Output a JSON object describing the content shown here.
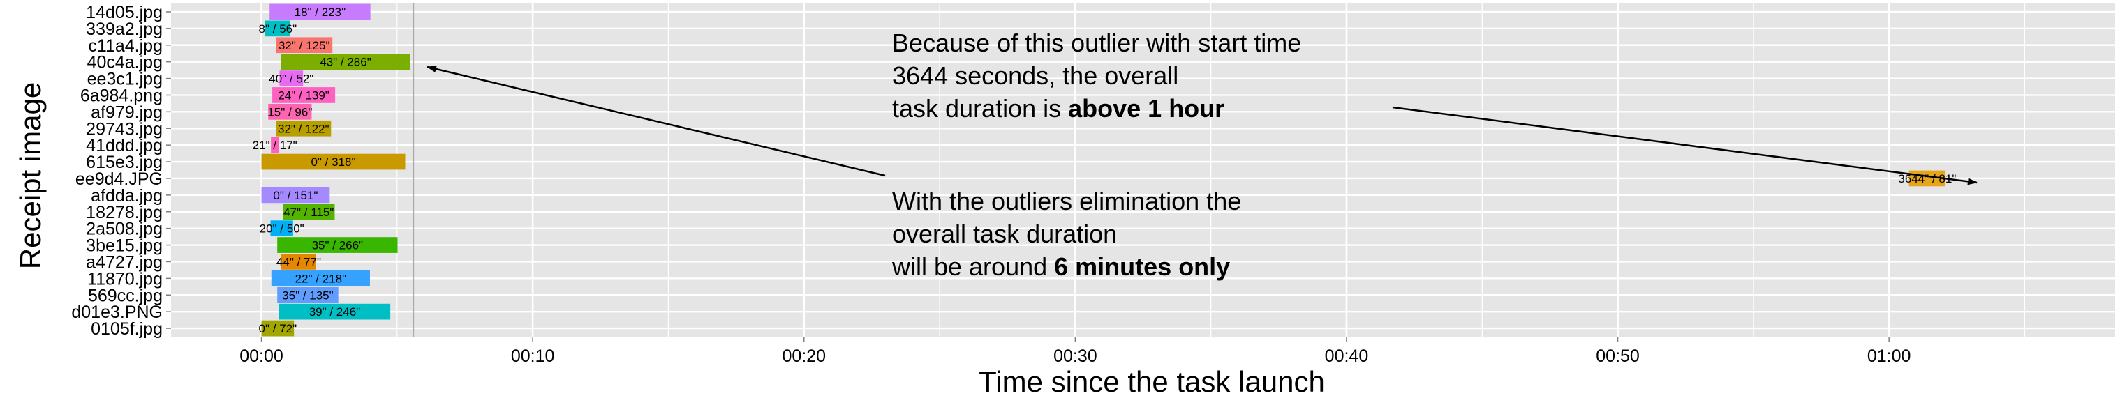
{
  "chart_data": {
    "type": "bar",
    "orientation": "horizontal-gantt",
    "xlabel": "Time since the task launch",
    "ylabel": "Receipt image",
    "xtick_labels": [
      "00:00",
      "00:10",
      "00:20",
      "00:30",
      "00:40",
      "00:50",
      "01:00"
    ],
    "xtick_values_seconds": [
      0,
      600,
      1200,
      1800,
      2400,
      3000,
      3600
    ],
    "xlim_seconds": [
      -200,
      4100
    ],
    "grid": true,
    "reference_line_seconds": 336,
    "series": [
      {
        "image": "14d05.jpg",
        "start": 18,
        "end": 223,
        "label": "18\" / 223\"",
        "color": "#c77cff"
      },
      {
        "image": "339a2.jpg",
        "start": 8,
        "end": 56,
        "label": "8\" / 56\"",
        "color": "#00bfc4"
      },
      {
        "image": "c11a4.jpg",
        "start": 32,
        "end": 125,
        "label": "32\" / 125\"",
        "color": "#f8766d"
      },
      {
        "image": "40c4a.jpg",
        "start": 43,
        "end": 286,
        "label": "43\" / 286\"",
        "color": "#7cae00"
      },
      {
        "image": "ee3c1.jpg",
        "start": 40,
        "end": 52,
        "label": "40\" / 52\"",
        "color": "#e76bf3"
      },
      {
        "image": "6a984.png",
        "start": 24,
        "end": 139,
        "label": "24\" / 139\"",
        "color": "#ff61c3"
      },
      {
        "image": "af979.jpg",
        "start": 15,
        "end": 96,
        "label": "15\" / 96\"",
        "color": "#ff64b0"
      },
      {
        "image": "29743.jpg",
        "start": 32,
        "end": 122,
        "label": "32\" / 122\"",
        "color": "#b79f00"
      },
      {
        "image": "41ddd.jpg",
        "start": 21,
        "end": 17,
        "label": "21\" / 17\"",
        "color": "#ff62bc"
      },
      {
        "image": "615e3.jpg",
        "start": 0,
        "end": 318,
        "label": "0\" / 318\"",
        "color": "#c99a00"
      },
      {
        "image": "ee9d4.JPG",
        "start": 3644,
        "end": 81,
        "label": "3644\" / 81\"",
        "color": "#e7a51b"
      },
      {
        "image": "afdda.jpg",
        "start": 0,
        "end": 151,
        "label": "0\" / 151\"",
        "color": "#a58aff"
      },
      {
        "image": "18278.jpg",
        "start": 47,
        "end": 115,
        "label": "47\" / 115\"",
        "color": "#53b400"
      },
      {
        "image": "2a508.jpg",
        "start": 20,
        "end": 50,
        "label": "20\" / 50\"",
        "color": "#00b0f6"
      },
      {
        "image": "3be15.jpg",
        "start": 35,
        "end": 266,
        "label": "35\" / 266\"",
        "color": "#39b600"
      },
      {
        "image": "a4727.jpg",
        "start": 44,
        "end": 77,
        "label": "44\" / 77\"",
        "color": "#e58700"
      },
      {
        "image": "11870.jpg",
        "start": 22,
        "end": 218,
        "label": "22\" / 218\"",
        "color": "#35a2ff"
      },
      {
        "image": "569cc.jpg",
        "start": 35,
        "end": 135,
        "label": "35\" / 135\"",
        "color": "#619cff"
      },
      {
        "image": "d01e3.PNG",
        "start": 39,
        "end": 246,
        "label": "39\" / 246\"",
        "color": "#00bfc4"
      },
      {
        "image": "0105f.jpg",
        "start": 0,
        "end": 72,
        "label": "0\" / 72\"",
        "color": "#a3a500"
      }
    ],
    "annotations": [
      {
        "lines": [
          {
            "parts": [
              {
                "text": "Because of this outlier with start time",
                "bold": false
              }
            ]
          },
          {
            "parts": [
              {
                "text": "3644 seconds, the overall",
                "bold": false
              }
            ]
          },
          {
            "parts": [
              {
                "text": "task duration is ",
                "bold": false
              },
              {
                "text": "above 1 hour",
                "bold": true
              }
            ]
          }
        ]
      },
      {
        "lines": [
          {
            "parts": [
              {
                "text": "With the outliers elimination the",
                "bold": false
              }
            ]
          },
          {
            "parts": [
              {
                "text": "overall task duration",
                "bold": false
              }
            ]
          },
          {
            "parts": [
              {
                "text": "will be around ",
                "bold": false
              },
              {
                "text": "6 minutes only",
                "bold": true
              }
            ]
          }
        ]
      }
    ],
    "colors": {
      "panel": "#e5e5e5",
      "grid": "#ffffff",
      "reference_line": "#a9a9a9"
    }
  }
}
